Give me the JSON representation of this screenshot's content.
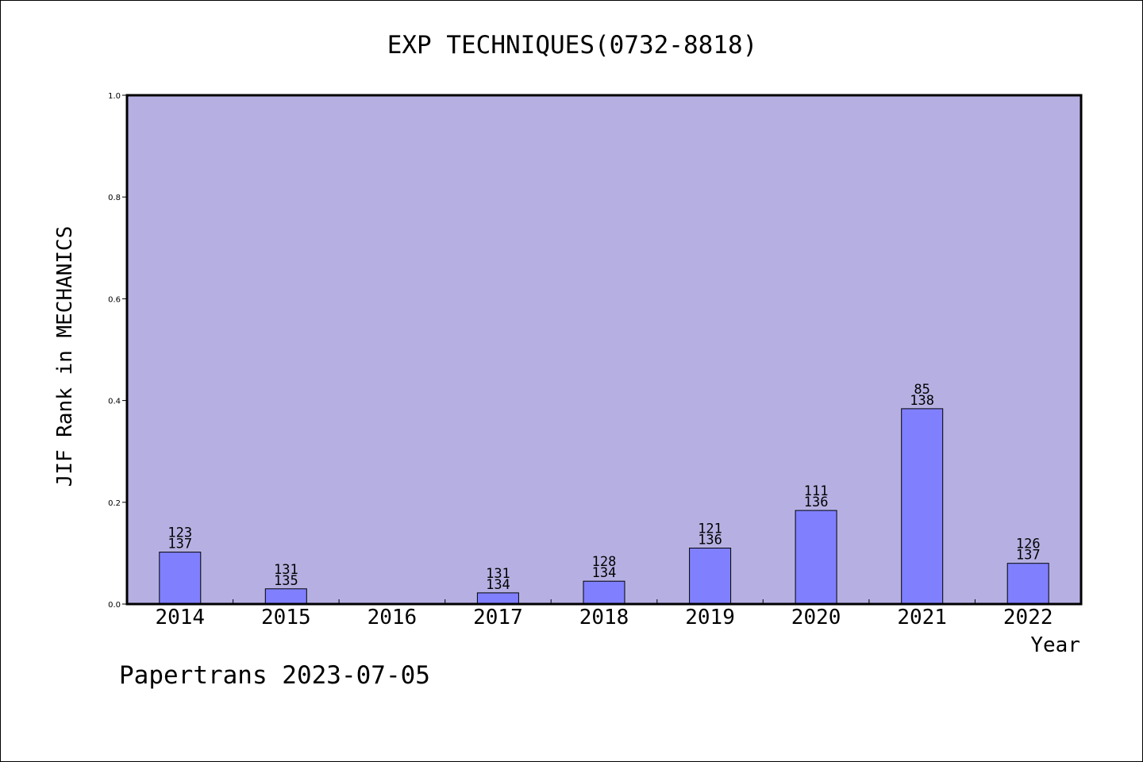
{
  "chart_data": {
    "type": "bar",
    "title": "EXP TECHNIQUES(0732-8818)",
    "xlabel": "Year",
    "ylabel": "JIF Rank in MECHANICS",
    "categories": [
      "2014",
      "2015",
      "2016",
      "2017",
      "2018",
      "2019",
      "2020",
      "2021",
      "2022"
    ],
    "values": [
      0.102,
      0.03,
      0.0,
      0.022,
      0.045,
      0.11,
      0.184,
      0.384,
      0.08
    ],
    "data_labels": [
      [
        "123",
        "137"
      ],
      [
        "131",
        "135"
      ],
      null,
      [
        "131",
        "134"
      ],
      [
        "128",
        "134"
      ],
      [
        "121",
        "136"
      ],
      [
        "111",
        "136"
      ],
      [
        "85",
        "138"
      ],
      [
        "126",
        "137"
      ]
    ],
    "ylim": [
      0,
      1
    ],
    "yticks": [
      "0.0",
      "0.2",
      "0.4",
      "0.6",
      "0.8",
      "1.0"
    ],
    "grid": false,
    "legend": "none",
    "colors": {
      "plot_background": "#b6b0e2",
      "bar_fill": "#8080fe",
      "bar_stroke": "#000000",
      "axis": "#000000"
    }
  },
  "footer": {
    "note": "Papertrans 2023-07-05"
  }
}
